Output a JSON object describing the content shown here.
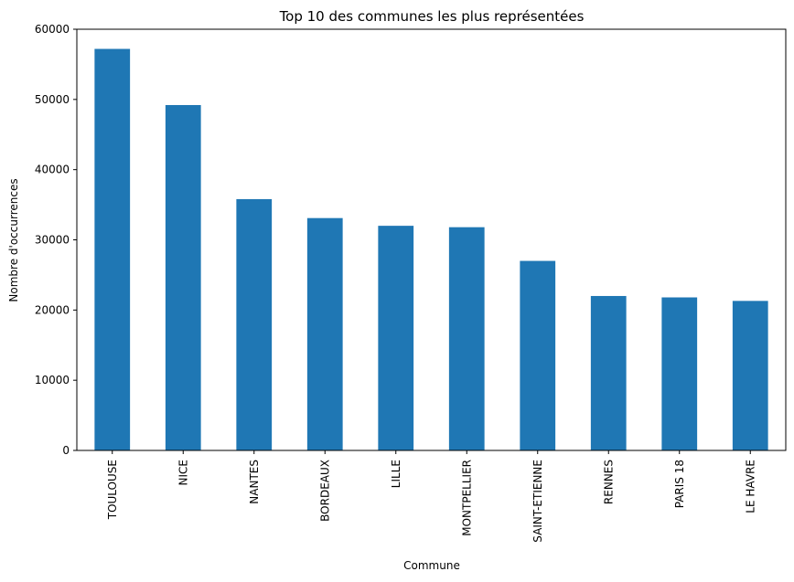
{
  "chart_data": {
    "type": "bar",
    "title": "Top 10 des communes les plus représentées",
    "xlabel": "Commune",
    "ylabel": "Nombre d'occurrences",
    "categories": [
      "TOULOUSE",
      "NICE",
      "NANTES",
      "BORDEAUX",
      "LILLE",
      "MONTPELLIER",
      "SAINT-ETIENNE",
      "RENNES",
      "PARIS 18",
      "LE HAVRE"
    ],
    "values": [
      57200,
      49200,
      35800,
      33100,
      32000,
      31800,
      27000,
      22000,
      21800,
      21300
    ],
    "ylim": [
      0,
      60000
    ],
    "yticks": [
      0,
      10000,
      20000,
      30000,
      40000,
      50000,
      60000
    ],
    "ytick_labels": [
      "0",
      "10000",
      "20000",
      "30000",
      "40000",
      "50000",
      "60000"
    ],
    "grid": false,
    "bar_color": "#1f77b4"
  }
}
